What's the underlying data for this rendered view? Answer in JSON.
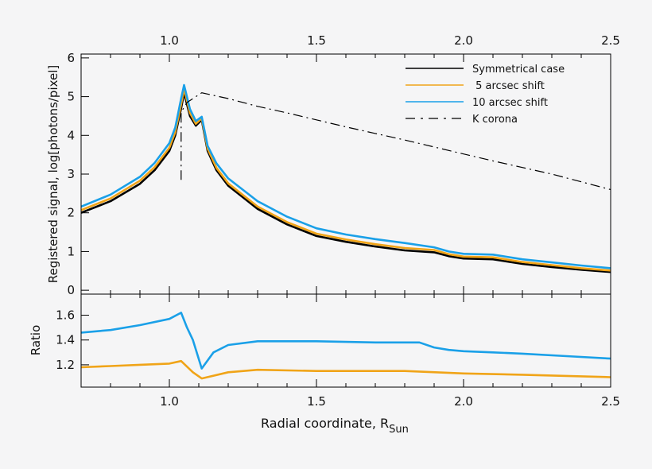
{
  "chart_data": [
    {
      "type": "line",
      "panel": "top",
      "ylabel": "Registered signal, log[photons/pixel]",
      "xlim": [
        0.7,
        2.5
      ],
      "ylim": [
        -0.1,
        6.1
      ],
      "xticks": [
        "1.0",
        "1.5",
        "2.0",
        "2.5"
      ],
      "yticks": [
        "0",
        "1",
        "2",
        "3",
        "4",
        "5",
        "6"
      ],
      "grid": false,
      "legend_position": "top-right",
      "series": [
        {
          "name": "Symmetrical case",
          "color": "#000000",
          "style": "solid",
          "x": [
            0.7,
            0.8,
            0.9,
            0.95,
            1.0,
            1.02,
            1.04,
            1.05,
            1.07,
            1.09,
            1.11,
            1.13,
            1.16,
            1.2,
            1.3,
            1.4,
            1.5,
            1.6,
            1.7,
            1.8,
            1.9,
            1.95,
            2.0,
            2.1,
            2.2,
            2.3,
            2.4,
            2.5
          ],
          "y": [
            2.0,
            2.3,
            2.75,
            3.1,
            3.6,
            4.0,
            4.7,
            5.1,
            4.5,
            4.25,
            4.4,
            3.6,
            3.1,
            2.7,
            2.1,
            1.7,
            1.4,
            1.25,
            1.13,
            1.03,
            0.98,
            0.88,
            0.82,
            0.8,
            0.68,
            0.6,
            0.53,
            0.47
          ]
        },
        {
          "name": " 5 arcsec shift",
          "color": "#f0a418",
          "style": "solid",
          "x": [
            0.7,
            0.8,
            0.9,
            0.95,
            1.0,
            1.02,
            1.04,
            1.05,
            1.07,
            1.09,
            1.11,
            1.13,
            1.16,
            1.2,
            1.3,
            1.4,
            1.5,
            1.6,
            1.7,
            1.8,
            1.9,
            1.95,
            2.0,
            2.1,
            2.2,
            2.3,
            2.4,
            2.5
          ],
          "y": [
            2.07,
            2.37,
            2.83,
            3.18,
            3.68,
            4.08,
            4.8,
            5.2,
            4.58,
            4.3,
            4.44,
            3.66,
            3.16,
            2.76,
            2.16,
            1.76,
            1.46,
            1.31,
            1.19,
            1.09,
            1.04,
            0.93,
            0.87,
            0.85,
            0.73,
            0.65,
            0.57,
            0.51
          ]
        },
        {
          "name": "10 arcsec shift",
          "color": "#1aa0e8",
          "style": "solid",
          "x": [
            0.7,
            0.8,
            0.9,
            0.95,
            1.0,
            1.02,
            1.04,
            1.05,
            1.07,
            1.09,
            1.11,
            1.13,
            1.16,
            1.2,
            1.3,
            1.4,
            1.5,
            1.6,
            1.7,
            1.8,
            1.9,
            1.95,
            2.0,
            2.1,
            2.2,
            2.3,
            2.4,
            2.5
          ],
          "y": [
            2.16,
            2.47,
            2.93,
            3.29,
            3.8,
            4.2,
            4.95,
            5.3,
            4.68,
            4.37,
            4.48,
            3.73,
            3.28,
            2.89,
            2.3,
            1.9,
            1.6,
            1.44,
            1.32,
            1.22,
            1.11,
            1.0,
            0.94,
            0.92,
            0.8,
            0.72,
            0.64,
            0.57
          ]
        },
        {
          "name": "K corona",
          "color": "#000000",
          "style": "dash-dot",
          "x": [
            1.04,
            1.04,
            1.06,
            1.11,
            1.2,
            1.3,
            1.4,
            1.5,
            1.6,
            1.7,
            1.8,
            1.9,
            2.0,
            2.1,
            2.2,
            2.3,
            2.4,
            2.5
          ],
          "y": [
            2.85,
            4.6,
            4.85,
            5.1,
            4.95,
            4.75,
            4.58,
            4.4,
            4.22,
            4.05,
            3.88,
            3.7,
            3.52,
            3.34,
            3.17,
            3.0,
            2.8,
            2.6
          ]
        }
      ]
    },
    {
      "type": "line",
      "panel": "bottom",
      "xlabel": "Radial coordinate, R",
      "xlabel_sub": "Sun",
      "ylabel": "Ratio",
      "xlim": [
        0.7,
        2.5
      ],
      "ylim": [
        1.02,
        1.77
      ],
      "xticks": [
        "1.0",
        "1.5",
        "2.0",
        "2.5"
      ],
      "yticks": [
        "1.2",
        "1.4",
        "1.6"
      ],
      "grid": false,
      "series": [
        {
          "color": "#1aa0e8",
          "x": [
            0.7,
            0.8,
            0.9,
            1.0,
            1.04,
            1.06,
            1.08,
            1.11,
            1.15,
            1.2,
            1.3,
            1.5,
            1.7,
            1.85,
            1.9,
            1.95,
            2.0,
            2.1,
            2.2,
            2.35,
            2.5
          ],
          "y": [
            1.46,
            1.48,
            1.52,
            1.57,
            1.62,
            1.5,
            1.4,
            1.17,
            1.3,
            1.36,
            1.39,
            1.39,
            1.38,
            1.38,
            1.34,
            1.32,
            1.31,
            1.3,
            1.29,
            1.27,
            1.25
          ]
        },
        {
          "color": "#f0a418",
          "x": [
            0.7,
            0.8,
            0.9,
            1.0,
            1.04,
            1.08,
            1.11,
            1.2,
            1.3,
            1.5,
            1.8,
            2.0,
            2.2,
            2.5
          ],
          "y": [
            1.18,
            1.19,
            1.2,
            1.21,
            1.23,
            1.14,
            1.09,
            1.14,
            1.16,
            1.15,
            1.15,
            1.13,
            1.12,
            1.1
          ]
        }
      ]
    }
  ]
}
